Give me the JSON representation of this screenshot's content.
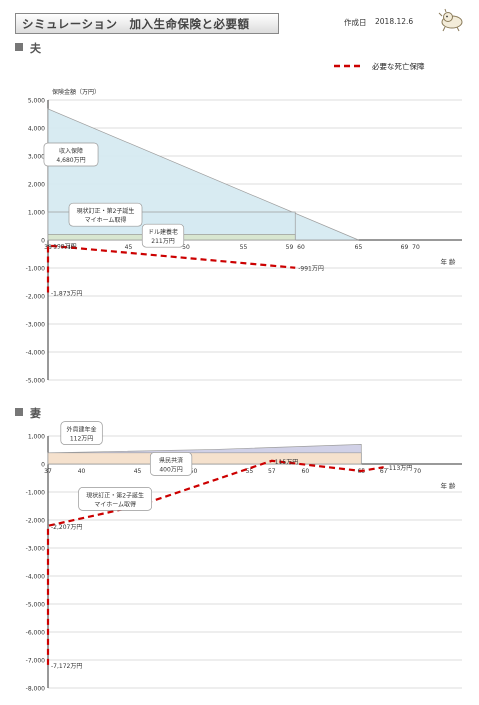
{
  "header": {
    "title": "シミュレーション　加入生命保険と必要額",
    "date_label": "作成日",
    "date_value": "2018.12.6"
  },
  "legend": {
    "label": "必要な死亡保障",
    "color": "#cc0000"
  },
  "chart_data": [
    {
      "type": "area",
      "section": "夫",
      "ylabel": "保険金額（万円）",
      "xlabel": "年 齢",
      "ylim": [
        -5000,
        5000
      ],
      "yticks": [
        5000,
        4000,
        3000,
        2000,
        1000,
        0,
        -1000,
        -2000,
        -3000,
        -4000,
        -5000
      ],
      "ytick_labels": [
        "5,000",
        "4,000",
        "3,000",
        "2,000",
        "1,000",
        "0",
        "-1,000",
        "-2,000",
        "-3,000",
        "-4,000",
        "-5,000"
      ],
      "xticks": [
        {
          "x": 38,
          "label": "38"
        },
        {
          "x": 40,
          "label": "40"
        },
        {
          "x": 45,
          "label": "45"
        },
        {
          "x": 50,
          "label": "50"
        },
        {
          "x": 55,
          "label": "55"
        },
        {
          "x": 59,
          "label": "59"
        },
        {
          "x": 60,
          "label": "60"
        },
        {
          "x": 65,
          "label": "65"
        },
        {
          "x": 69,
          "label": "69"
        },
        {
          "x": 70,
          "label": "70"
        }
      ],
      "xlim": [
        38,
        74
      ],
      "coverage": [
        {
          "name": "収入保障",
          "color": "#d6eaf2",
          "points": [
            [
              38,
              4680
            ],
            [
              65,
              0
            ]
          ]
        },
        {
          "name": "",
          "color": "#d6eaf2",
          "points": [
            [
              38,
              1000
            ],
            [
              59.5,
              1000
            ]
          ]
        },
        {
          "name": "",
          "color": "#d9e6cf",
          "points": [
            [
              38,
              200
            ],
            [
              59.5,
              200
            ]
          ]
        }
      ],
      "need_line": {
        "name": "必要な死亡保障",
        "points": [
          [
            38,
            -1873
          ],
          [
            38,
            -199
          ],
          [
            59.5,
            -991
          ]
        ]
      },
      "annotations": [
        {
          "text": "収入保障",
          "value_text": "4,680万円",
          "x": 40,
          "y": 3000
        },
        {
          "text": "ドル建養老",
          "value_text": "211万円",
          "x": 48,
          "y": 100
        },
        {
          "text": "現状訂正・第2子誕生",
          "value_text": "マイホーム取得",
          "x": 43,
          "y": 850
        },
        {
          "text": "-199万円",
          "x": 38,
          "y": -199
        },
        {
          "text": "-991万円",
          "x": 59.5,
          "y": -991
        },
        {
          "text": "-1,873万円",
          "x": 38,
          "y": -1873
        }
      ]
    },
    {
      "type": "area",
      "section": "妻",
      "xlabel": "年 齢",
      "ylim": [
        -8000,
        1000
      ],
      "yticks": [
        1000,
        0,
        -1000,
        -2000,
        -3000,
        -4000,
        -5000,
        -6000,
        -7000,
        -8000
      ],
      "ytick_labels": [
        "1,000",
        "0",
        "-1,000",
        "-2,000",
        "-3,000",
        "-4,000",
        "-5,000",
        "-6,000",
        "-7,000",
        "-8,000"
      ],
      "xticks": [
        {
          "x": 37,
          "label": "37"
        },
        {
          "x": 40,
          "label": "40"
        },
        {
          "x": 45,
          "label": "45"
        },
        {
          "x": 50,
          "label": "50"
        },
        {
          "x": 55,
          "label": "55"
        },
        {
          "x": 57,
          "label": "57"
        },
        {
          "x": 60,
          "label": "60"
        },
        {
          "x": 65,
          "label": "65"
        },
        {
          "x": 67,
          "label": "67"
        },
        {
          "x": 70,
          "label": "70"
        }
      ],
      "xlim": [
        37,
        74
      ],
      "coverage": [
        {
          "name": "外貨建年金",
          "color": "#cfcfe6",
          "points": [
            [
              37,
              400
            ],
            [
              52,
              520
            ],
            [
              65,
              700
            ]
          ]
        },
        {
          "name": "県民共済",
          "color": "#f7e2cc",
          "points": [
            [
              37,
              400
            ],
            [
              65,
              400
            ]
          ]
        }
      ],
      "need_line": {
        "name": "必要な死亡保障",
        "points": [
          [
            37,
            -7172
          ],
          [
            37,
            -2207
          ],
          [
            45,
            -1500
          ],
          [
            57,
            115
          ],
          [
            65,
            -250
          ],
          [
            67,
            -113
          ]
        ]
      },
      "annotations": [
        {
          "text": "外貨建年金",
          "value_text": "112万円",
          "x": 40,
          "y": 1050
        },
        {
          "text": "県民共済",
          "value_text": "400万円",
          "x": 48,
          "y": -50
        },
        {
          "text": "現状訂正・第2子誕生",
          "value_text": "マイホーム取得",
          "x": 43,
          "y": -1300
        },
        {
          "text": "115万円",
          "x": 57,
          "y": 115
        },
        {
          "text": "-113万円",
          "x": 67,
          "y": -113
        },
        {
          "text": "-2,207万円",
          "x": 37,
          "y": -2207
        },
        {
          "text": "-7,172万円",
          "x": 37,
          "y": -7172
        }
      ]
    }
  ]
}
